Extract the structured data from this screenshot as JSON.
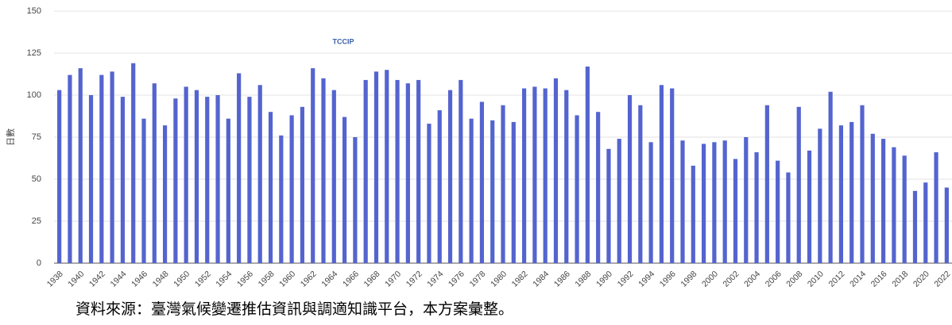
{
  "chart_data": {
    "type": "bar",
    "watermark": "TCCIP",
    "ylabel": "日數",
    "source": "資料來源：臺灣氣候變遷推估資訊與調適知識平台，本方案彙整。",
    "color": "#5464cf",
    "grid": true,
    "categories": [
      "1938",
      null,
      "1940",
      null,
      "1942",
      null,
      "1944",
      null,
      "1946",
      null,
      "1948",
      null,
      "1950",
      null,
      "1952",
      null,
      "1954",
      null,
      "1956",
      null,
      "1958",
      null,
      "1960",
      null,
      "1962",
      null,
      "1964",
      null,
      "1966",
      null,
      "1968",
      null,
      "1970",
      null,
      "1972",
      null,
      "1974",
      null,
      "1976",
      null,
      "1978",
      null,
      "1980",
      null,
      "1982",
      null,
      "1984",
      null,
      "1986",
      null,
      "1988",
      null,
      "1990",
      null,
      "1992",
      null,
      "1994",
      null,
      "1996",
      null,
      "1998",
      null,
      "2000",
      null,
      "2002",
      null,
      "2004",
      null,
      "2006",
      null,
      "2008",
      null,
      "2010",
      null,
      "2012",
      null,
      "2014",
      null,
      "2016",
      null,
      "2018",
      null,
      "2020",
      null,
      "2022"
    ],
    "values": [
      103,
      112,
      116,
      100,
      112,
      114,
      99,
      119,
      86,
      107,
      82,
      98,
      105,
      103,
      99,
      100,
      86,
      113,
      99,
      106,
      90,
      76,
      88,
      93,
      116,
      110,
      103,
      87,
      75,
      109,
      114,
      115,
      109,
      107,
      109,
      83,
      91,
      103,
      109,
      86,
      96,
      85,
      94,
      84,
      104,
      105,
      104,
      110,
      103,
      88,
      117,
      90,
      68,
      74,
      100,
      94,
      72,
      106,
      104,
      73,
      58,
      71,
      72,
      73,
      62,
      75,
      66,
      94,
      61,
      54,
      93,
      67,
      80,
      102,
      82,
      84,
      94,
      77,
      74,
      69,
      64,
      43,
      48,
      66,
      45
    ],
    "ylim": [
      0,
      150
    ],
    "yticks": [
      0,
      25,
      50,
      75,
      100,
      125,
      150
    ]
  }
}
